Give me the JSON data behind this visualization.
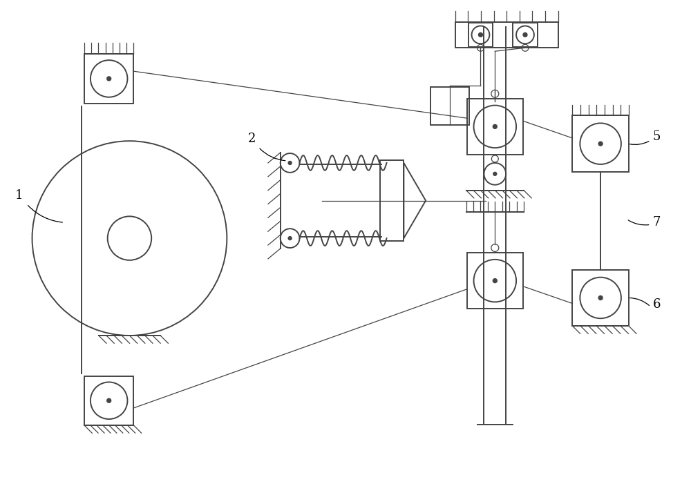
{
  "background": "#ffffff",
  "lc": "#444444",
  "lw": 1.4,
  "lw_thin": 0.9,
  "figsize": [
    10.0,
    7.17
  ],
  "dpi": 100,
  "xlim": [
    0,
    10
  ],
  "ylim": [
    0,
    7.17
  ]
}
